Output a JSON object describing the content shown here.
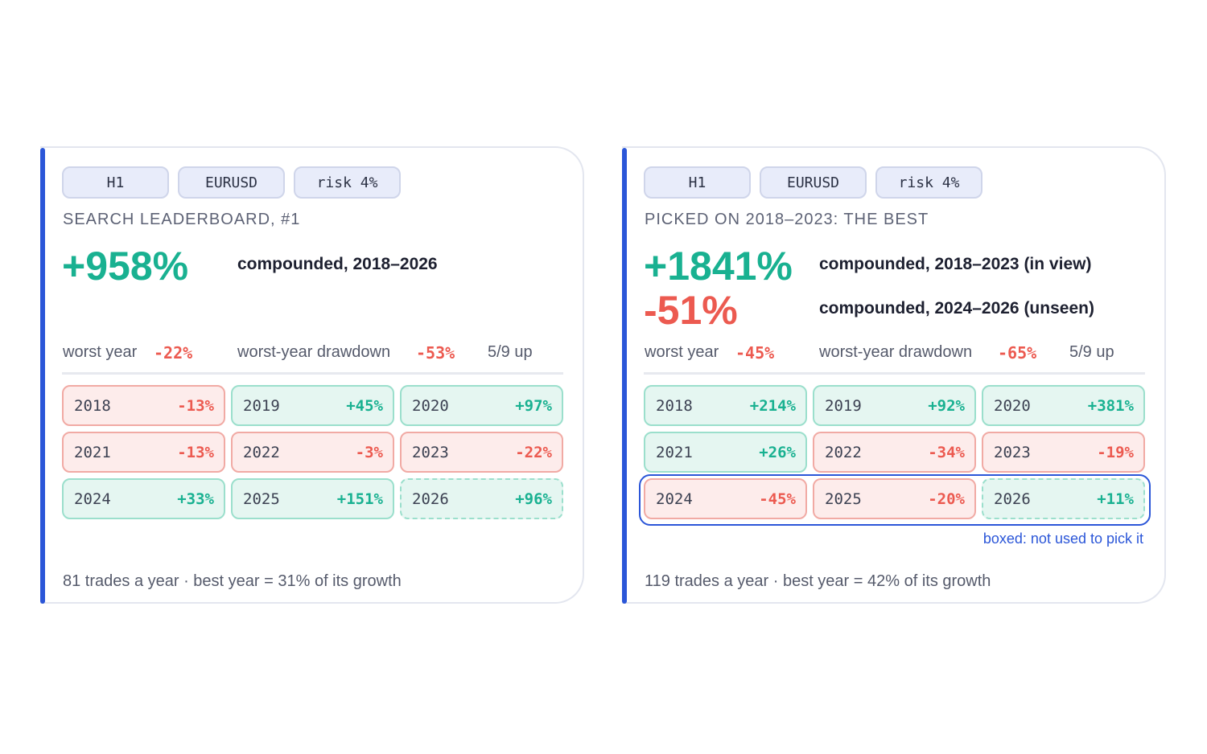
{
  "cards": [
    {
      "tags": [
        "H1",
        "EURUSD",
        "risk 4%"
      ],
      "subtitle": "SEARCH LEADERBOARD, #1",
      "headline": {
        "value": "+958%",
        "desc": "compounded, 2018–2026"
      },
      "stats": {
        "worst_year_label": "worst year",
        "worst_year_value": "-22%",
        "drawdown_label": "worst-year drawdown",
        "drawdown_value": "-53%",
        "up": "5/9 up"
      },
      "years": [
        {
          "year": "2018",
          "value": "-13%",
          "sign": "neg"
        },
        {
          "year": "2019",
          "value": "+45%",
          "sign": "pos"
        },
        {
          "year": "2020",
          "value": "+97%",
          "sign": "pos"
        },
        {
          "year": "2021",
          "value": "-13%",
          "sign": "neg"
        },
        {
          "year": "2022",
          "value": "-3%",
          "sign": "neg"
        },
        {
          "year": "2023",
          "value": "-22%",
          "sign": "neg"
        },
        {
          "year": "2024",
          "value": "+33%",
          "sign": "pos"
        },
        {
          "year": "2025",
          "value": "+151%",
          "sign": "pos"
        },
        {
          "year": "2026",
          "value": "+96%",
          "sign": "pos",
          "dashed": true
        }
      ],
      "footer": "81 trades a year · best year = 31% of its growth"
    },
    {
      "tags": [
        "H1",
        "EURUSD",
        "risk 4%"
      ],
      "subtitle": "PICKED ON 2018–2023: THE BEST",
      "headline": {
        "value": "+1841%",
        "desc": "compounded, 2018–2023 (in view)"
      },
      "headline2": {
        "value": "-51%",
        "desc": "compounded, 2024–2026 (unseen)"
      },
      "stats": {
        "worst_year_label": "worst year",
        "worst_year_value": "-45%",
        "drawdown_label": "worst-year drawdown",
        "drawdown_value": "-65%",
        "up": "5/9 up"
      },
      "years": [
        {
          "year": "2018",
          "value": "+214%",
          "sign": "pos"
        },
        {
          "year": "2019",
          "value": "+92%",
          "sign": "pos"
        },
        {
          "year": "2020",
          "value": "+381%",
          "sign": "pos"
        },
        {
          "year": "2021",
          "value": "+26%",
          "sign": "pos"
        },
        {
          "year": "2022",
          "value": "-34%",
          "sign": "neg"
        },
        {
          "year": "2023",
          "value": "-19%",
          "sign": "neg"
        },
        {
          "year": "2024",
          "value": "-45%",
          "sign": "neg"
        },
        {
          "year": "2025",
          "value": "-20%",
          "sign": "neg"
        },
        {
          "year": "2026",
          "value": "+11%",
          "sign": "pos",
          "dashed": true
        }
      ],
      "unseen_note": "boxed: not used to pick it",
      "footer": "119 trades a year · best year = 42% of its growth"
    }
  ],
  "colors": {
    "accent": "#2b56d8",
    "positive": "#19b191",
    "negative": "#ec5a50"
  }
}
